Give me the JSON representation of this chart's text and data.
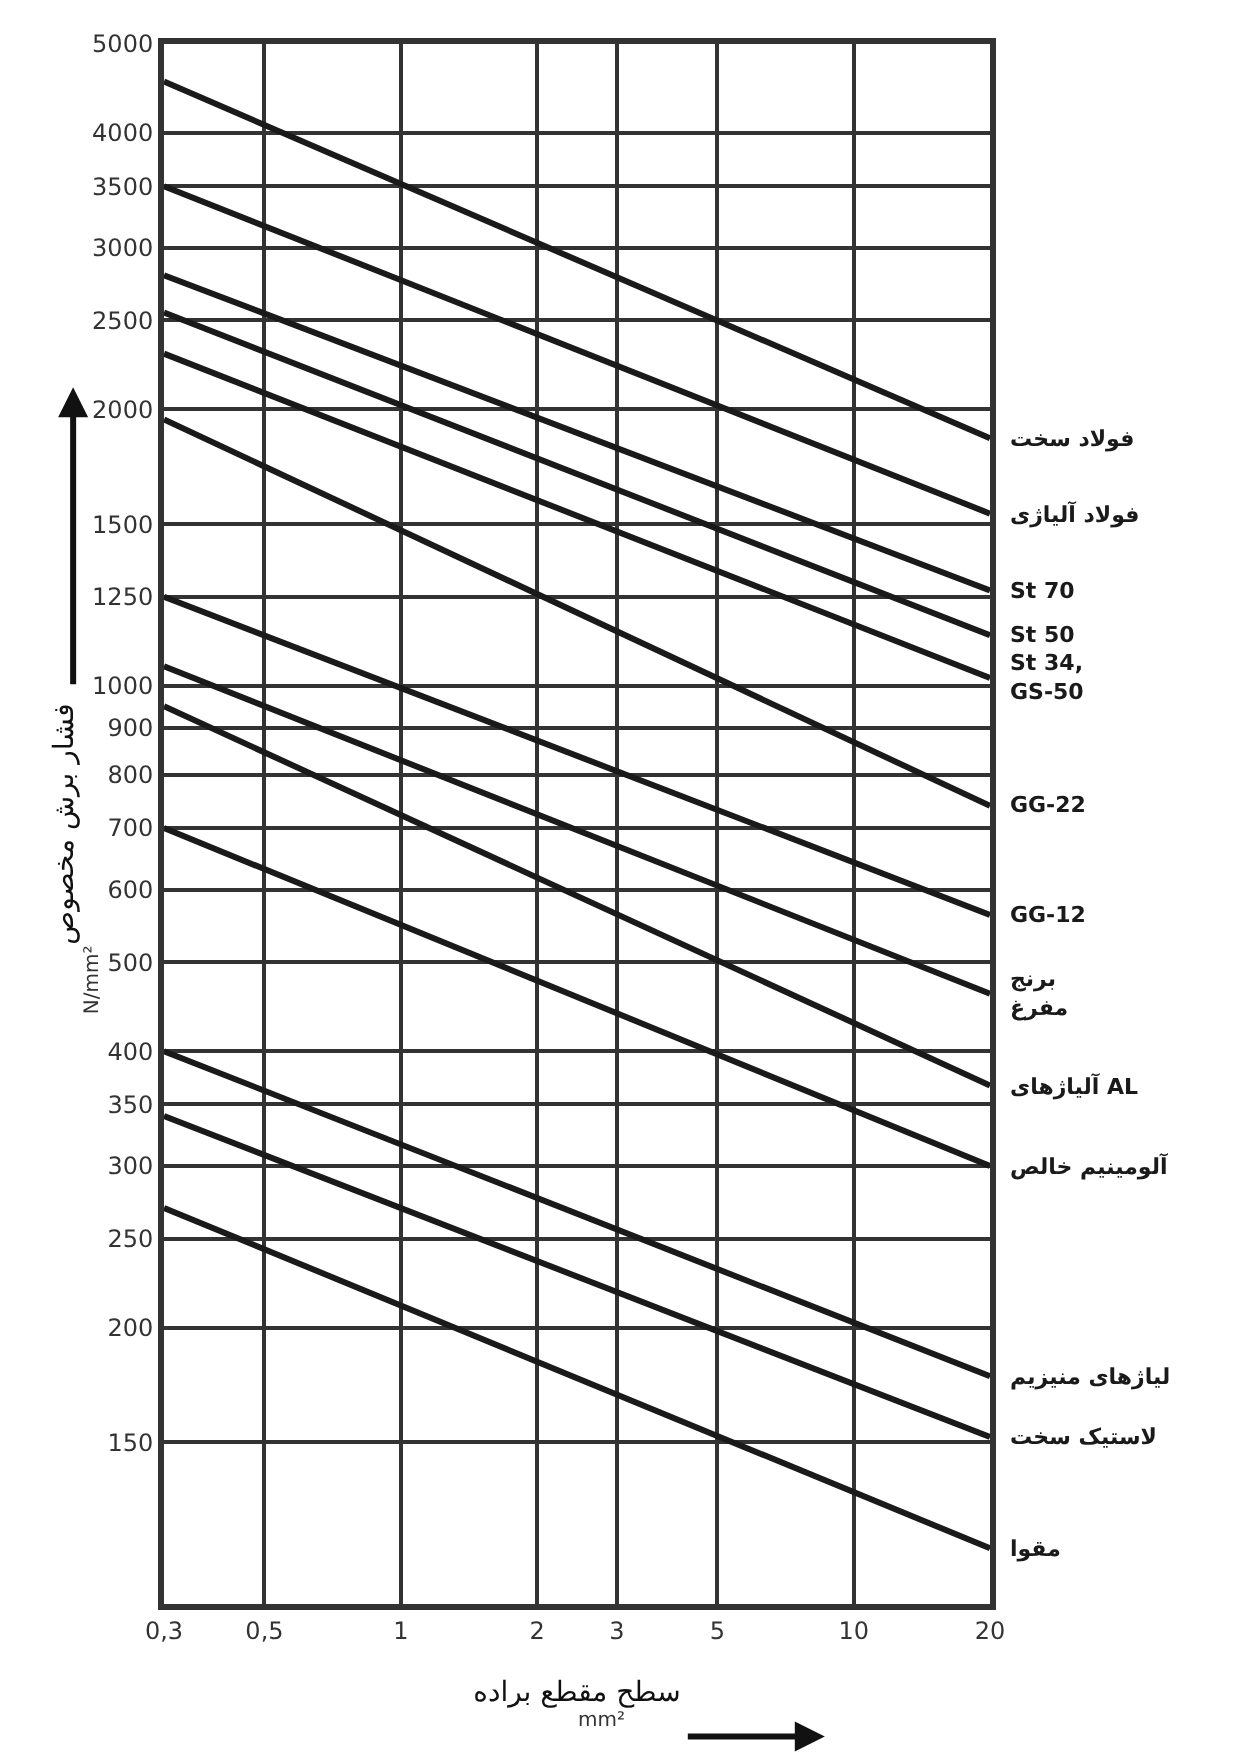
{
  "chart_data": {
    "type": "line",
    "xlabel": "سطح مقطع براده",
    "ylabel": "فشار برش مخصوص",
    "annotations": [
      "N/mm²",
      "mm²"
    ],
    "x": [
      0.3,
      20
    ],
    "series": [
      {
        "name": "فولاد سخت",
        "color": "#1a1a1a",
        "values": [
          4550,
          1860
        ]
      },
      {
        "name": "فولاد آلیاژی",
        "color": "#1a1a1a",
        "values": [
          3500,
          1540
        ]
      },
      {
        "name": "St 70",
        "color": "#1a1a1a",
        "values": [
          2800,
          1270
        ]
      },
      {
        "name": "St 50",
        "color": "#1a1a1a",
        "values": [
          2550,
          1135
        ]
      },
      {
        "name": "St 34,\nGS-50",
        "color": "#1a1a1a",
        "values": [
          2300,
          1020
        ]
      },
      {
        "name": "GG-22",
        "color": "#1a1a1a",
        "values": [
          1950,
          740
        ]
      },
      {
        "name": "GG-12",
        "color": "#1a1a1a",
        "values": [
          1250,
          563
        ]
      },
      {
        "name": "برنج\nمفرغ",
        "color": "#1a1a1a",
        "values": [
          1050,
          462
        ]
      },
      {
        "name": "آلیاژهای AL",
        "color": "#1a1a1a",
        "values": [
          950,
          367
        ]
      },
      {
        "name": "آلومینیم خالص",
        "color": "#1a1a1a",
        "values": [
          700,
          300
        ]
      },
      {
        "name": "لیاژهای منیزیم",
        "color": "#1a1a1a",
        "values": [
          400,
          177
        ]
      },
      {
        "name": "لاستیک سخت",
        "color": "#1a1a1a",
        "values": [
          340,
          152
        ]
      },
      {
        "name": "مقوا",
        "color": "#1a1a1a",
        "values": [
          270,
          115
        ]
      }
    ],
    "log": "xy",
    "xlim": [
      0.3,
      20
    ],
    "xticks": [
      {
        "value": 0.3,
        "label": "0,3"
      },
      {
        "value": 0.5,
        "label": "0,5"
      },
      1,
      2,
      3,
      5,
      10,
      20
    ],
    "ylim": [
      100,
      5000
    ],
    "yticks": [
      150,
      200,
      250,
      300,
      350,
      400,
      500,
      600,
      700,
      800,
      900,
      1000,
      1250,
      1500,
      2000,
      2500,
      3000,
      3500,
      4000,
      5000
    ],
    "grid": true,
    "legend": false,
    "marker": "none",
    "line_style": "solid"
  }
}
